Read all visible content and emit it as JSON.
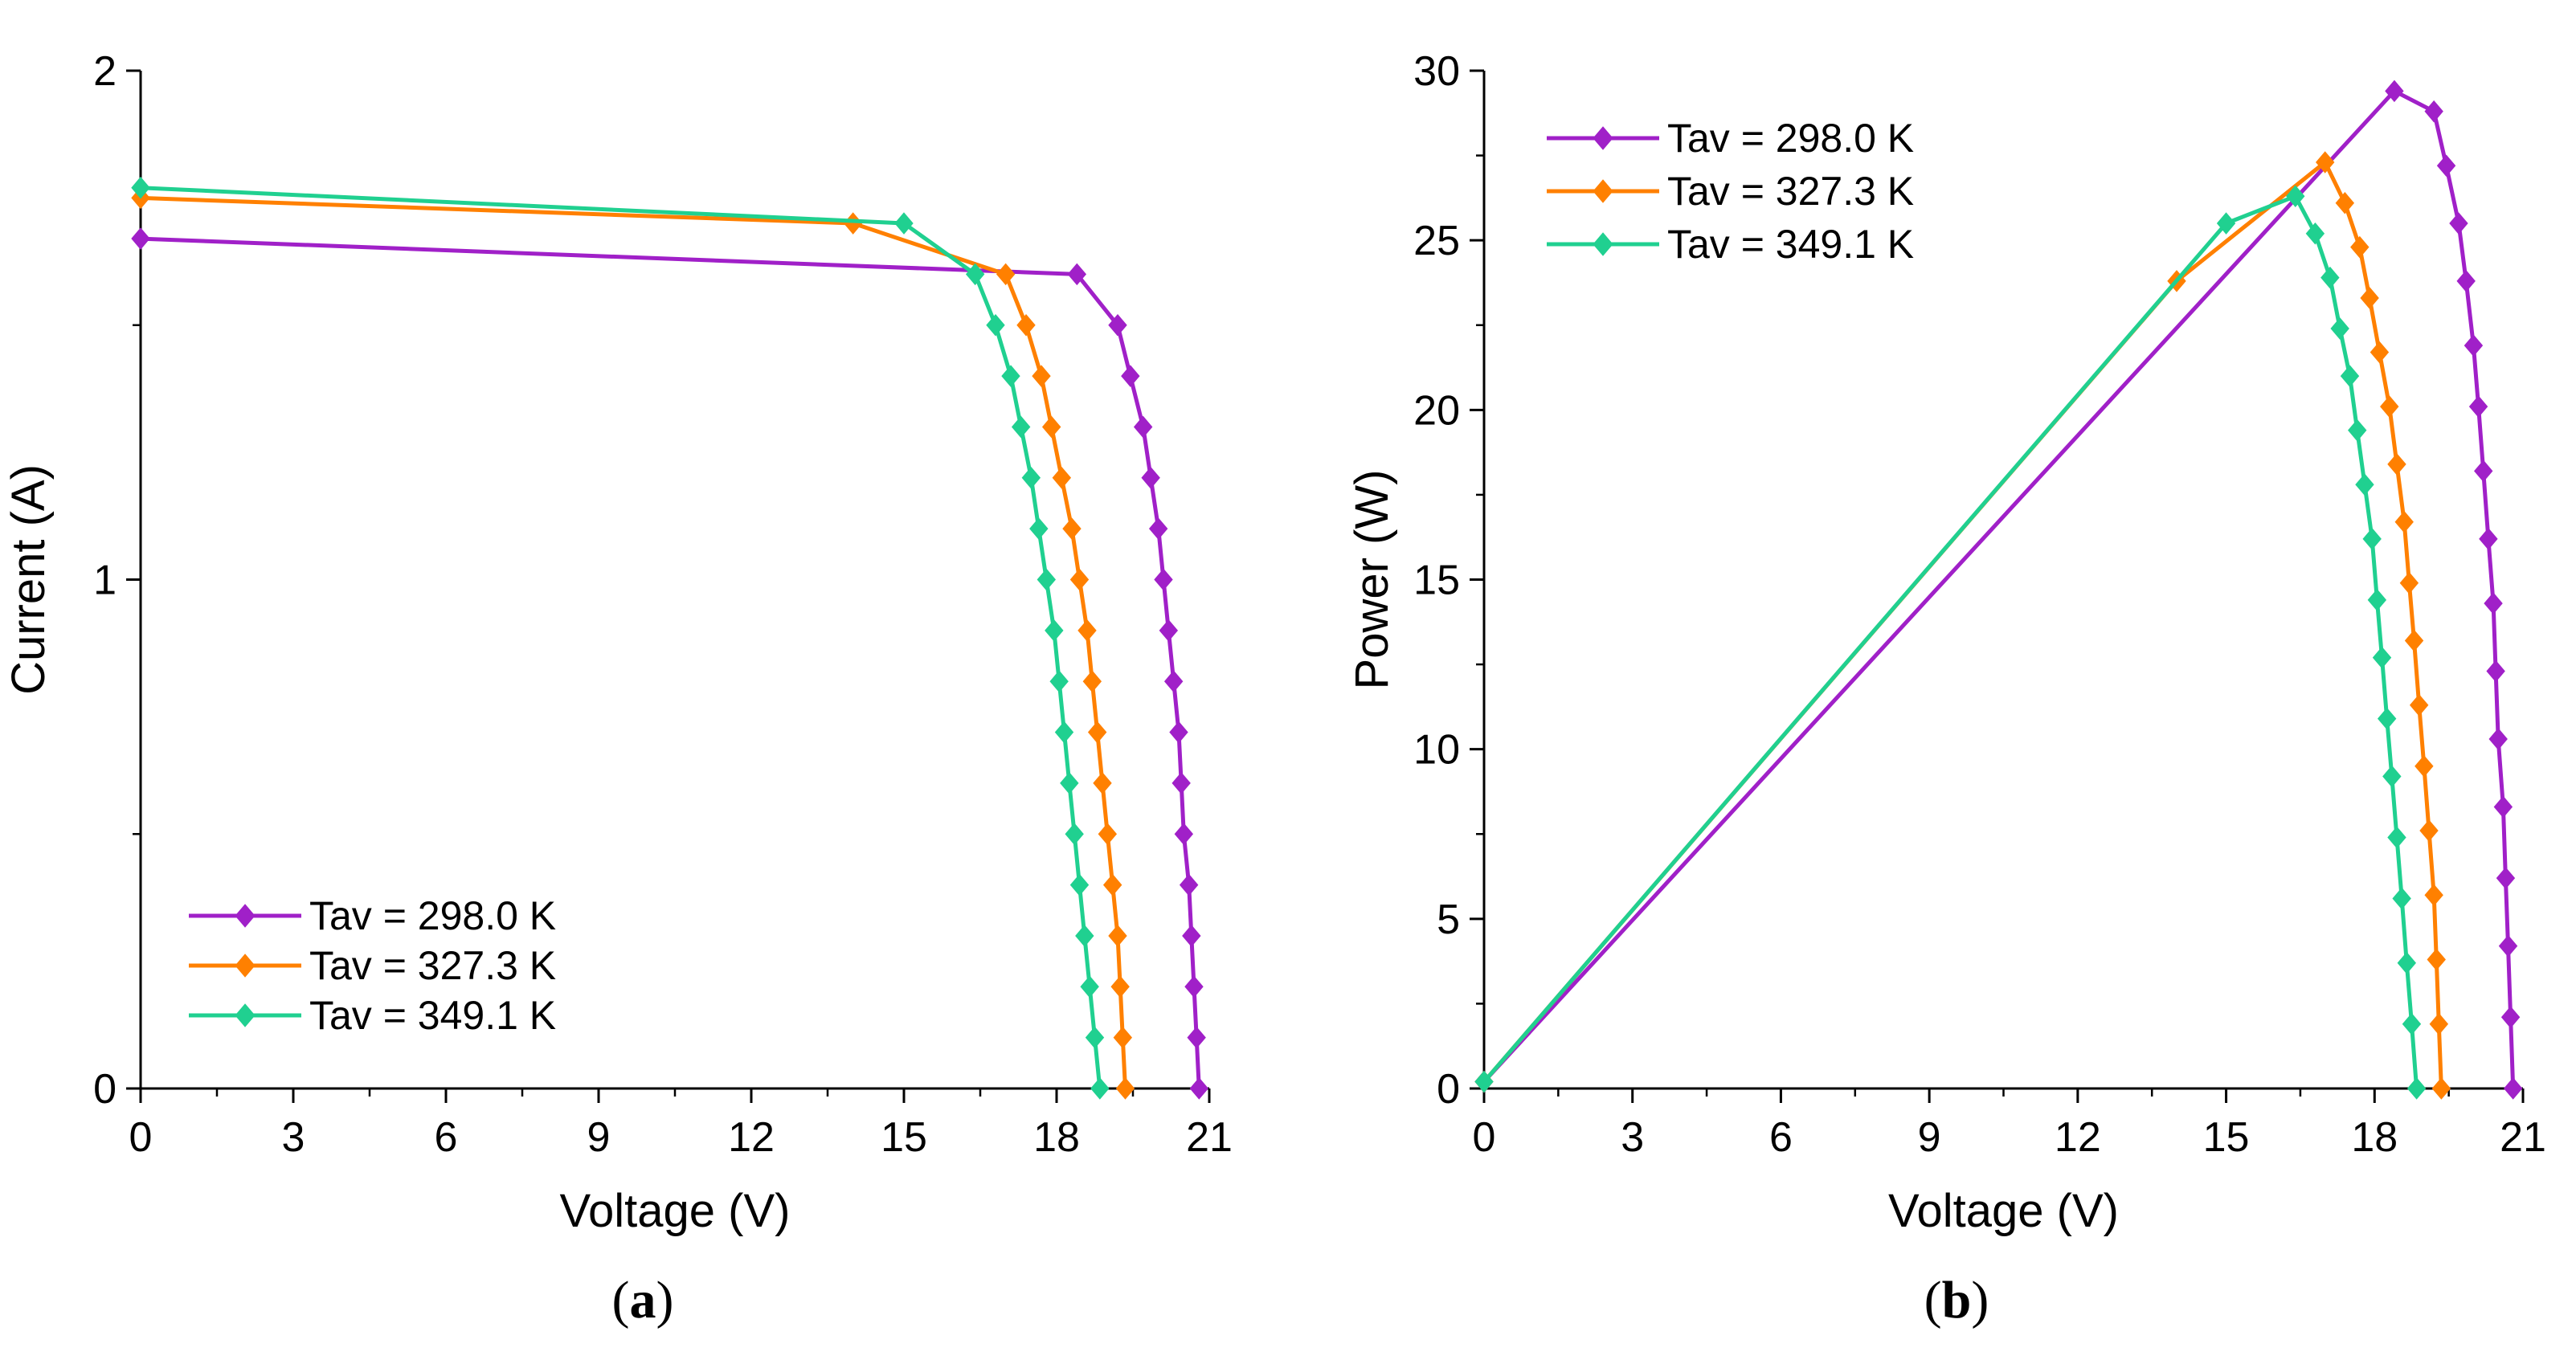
{
  "chart_data": [
    {
      "type": "line",
      "panel_label": "a",
      "xlabel": "Voltage (V)",
      "ylabel": "Current (A)",
      "xlim": [
        0,
        21
      ],
      "ylim": [
        0,
        2
      ],
      "xticks": [
        0,
        3,
        6,
        9,
        12,
        15,
        18,
        21
      ],
      "yticks": [
        0,
        1,
        2
      ],
      "x_minor_ticks": true,
      "y_minor_ticks": true,
      "grid": false,
      "legend_position": "bottom-left",
      "series": [
        {
          "name": "Tav = 298.0 K",
          "color": "#A020C8",
          "marker": "diamond",
          "points": [
            [
              0,
              1.67
            ],
            [
              18.4,
              1.6
            ],
            [
              19.2,
              1.5
            ],
            [
              19.45,
              1.4
            ],
            [
              19.7,
              1.3
            ],
            [
              19.85,
              1.2
            ],
            [
              20.0,
              1.1
            ],
            [
              20.1,
              1.0
            ],
            [
              20.2,
              0.9
            ],
            [
              20.3,
              0.8
            ],
            [
              20.4,
              0.7
            ],
            [
              20.45,
              0.6
            ],
            [
              20.5,
              0.5
            ],
            [
              20.6,
              0.4
            ],
            [
              20.65,
              0.3
            ],
            [
              20.7,
              0.2
            ],
            [
              20.75,
              0.1
            ],
            [
              20.8,
              0.0
            ]
          ]
        },
        {
          "name": "Tav = 327.3 K",
          "color": "#FF8000",
          "marker": "diamond",
          "points": [
            [
              0,
              1.75
            ],
            [
              14.0,
              1.7
            ],
            [
              17.0,
              1.6
            ],
            [
              17.4,
              1.5
            ],
            [
              17.7,
              1.4
            ],
            [
              17.9,
              1.3
            ],
            [
              18.1,
              1.2
            ],
            [
              18.3,
              1.1
            ],
            [
              18.45,
              1.0
            ],
            [
              18.6,
              0.9
            ],
            [
              18.7,
              0.8
            ],
            [
              18.8,
              0.7
            ],
            [
              18.9,
              0.6
            ],
            [
              19.0,
              0.5
            ],
            [
              19.1,
              0.4
            ],
            [
              19.2,
              0.3
            ],
            [
              19.25,
              0.2
            ],
            [
              19.3,
              0.1
            ],
            [
              19.35,
              0.0
            ]
          ]
        },
        {
          "name": "Tav = 349.1 K",
          "color": "#20D090",
          "marker": "diamond",
          "points": [
            [
              0,
              1.77
            ],
            [
              15.0,
              1.7
            ],
            [
              16.4,
              1.6
            ],
            [
              16.8,
              1.5
            ],
            [
              17.1,
              1.4
            ],
            [
              17.3,
              1.3
            ],
            [
              17.5,
              1.2
            ],
            [
              17.65,
              1.1
            ],
            [
              17.8,
              1.0
            ],
            [
              17.95,
              0.9
            ],
            [
              18.05,
              0.8
            ],
            [
              18.15,
              0.7
            ],
            [
              18.25,
              0.6
            ],
            [
              18.35,
              0.5
            ],
            [
              18.45,
              0.4
            ],
            [
              18.55,
              0.3
            ],
            [
              18.65,
              0.2
            ],
            [
              18.75,
              0.1
            ],
            [
              18.85,
              0.0
            ]
          ]
        }
      ]
    },
    {
      "type": "line",
      "panel_label": "b",
      "xlabel": "Voltage (V)",
      "ylabel": "Power (W)",
      "xlim": [
        0,
        21
      ],
      "ylim": [
        0,
        30
      ],
      "xticks": [
        0,
        3,
        6,
        9,
        12,
        15,
        18,
        21
      ],
      "yticks": [
        0,
        5,
        10,
        15,
        20,
        25,
        30
      ],
      "x_minor_ticks": true,
      "y_minor_ticks": true,
      "grid": false,
      "legend_position": "top-left",
      "series": [
        {
          "name": "Tav = 298.0 K",
          "color": "#A020C8",
          "marker": "diamond",
          "points": [
            [
              0,
              0.2
            ],
            [
              18.4,
              29.4
            ],
            [
              19.2,
              28.8
            ],
            [
              19.45,
              27.2
            ],
            [
              19.7,
              25.5
            ],
            [
              19.85,
              23.8
            ],
            [
              20.0,
              21.9
            ],
            [
              20.1,
              20.1
            ],
            [
              20.2,
              18.2
            ],
            [
              20.3,
              16.2
            ],
            [
              20.4,
              14.3
            ],
            [
              20.45,
              12.3
            ],
            [
              20.5,
              10.3
            ],
            [
              20.6,
              8.3
            ],
            [
              20.65,
              6.2
            ],
            [
              20.7,
              4.2
            ],
            [
              20.75,
              2.1
            ],
            [
              20.8,
              0.0
            ]
          ]
        },
        {
          "name": "Tav = 327.3 K",
          "color": "#FF8000",
          "marker": "diamond",
          "points": [
            [
              0,
              0.2
            ],
            [
              14.0,
              23.8
            ],
            [
              17.0,
              27.3
            ],
            [
              17.4,
              26.1
            ],
            [
              17.7,
              24.8
            ],
            [
              17.9,
              23.3
            ],
            [
              18.1,
              21.7
            ],
            [
              18.3,
              20.1
            ],
            [
              18.45,
              18.4
            ],
            [
              18.6,
              16.7
            ],
            [
              18.7,
              14.9
            ],
            [
              18.8,
              13.2
            ],
            [
              18.9,
              11.3
            ],
            [
              19.0,
              9.5
            ],
            [
              19.1,
              7.6
            ],
            [
              19.2,
              5.7
            ],
            [
              19.25,
              3.8
            ],
            [
              19.3,
              1.9
            ],
            [
              19.35,
              0.0
            ]
          ]
        },
        {
          "name": "Tav = 349.1 K",
          "color": "#20D090",
          "marker": "diamond",
          "points": [
            [
              0,
              0.2
            ],
            [
              15.0,
              25.5
            ],
            [
              16.4,
              26.3
            ],
            [
              16.8,
              25.2
            ],
            [
              17.1,
              23.9
            ],
            [
              17.3,
              22.4
            ],
            [
              17.5,
              21.0
            ],
            [
              17.65,
              19.4
            ],
            [
              17.8,
              17.8
            ],
            [
              17.95,
              16.2
            ],
            [
              18.05,
              14.4
            ],
            [
              18.15,
              12.7
            ],
            [
              18.25,
              10.9
            ],
            [
              18.35,
              9.2
            ],
            [
              18.45,
              7.4
            ],
            [
              18.55,
              5.6
            ],
            [
              18.65,
              3.7
            ],
            [
              18.75,
              1.9
            ],
            [
              18.85,
              0.0
            ]
          ]
        }
      ]
    }
  ]
}
